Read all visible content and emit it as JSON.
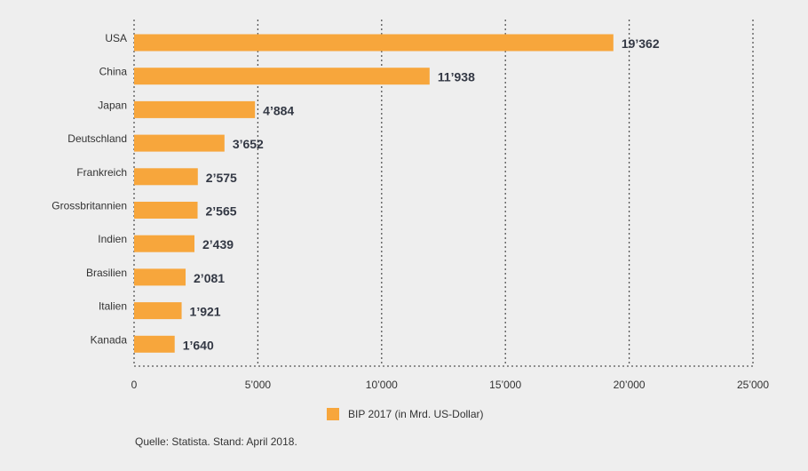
{
  "chart_data": {
    "type": "bar",
    "orientation": "horizontal",
    "categories": [
      "USA",
      "China",
      "Japan",
      "Deutschland",
      "Frankreich",
      "Grossbritannien",
      "Indien",
      "Brasilien",
      "Italien",
      "Kanada"
    ],
    "series": [
      {
        "name": "BIP 2017 (in Mrd. US-Dollar)",
        "values": [
          19362,
          11938,
          4884,
          3652,
          2575,
          2565,
          2439,
          2081,
          1921,
          1640
        ],
        "value_labels": [
          "19’362",
          "11’938",
          "4’884",
          "3’652",
          "2’575",
          "2’565",
          "2’439",
          "2’081",
          "1’921",
          "1’640"
        ]
      }
    ],
    "xlim": [
      0,
      25000
    ],
    "xticks": [
      0,
      5000,
      10000,
      15000,
      20000,
      25000
    ],
    "xtick_labels": [
      "0",
      "5’000",
      "10’000",
      "15’000",
      "20’000",
      "25’000"
    ],
    "grid": "vertical dotted",
    "legend_position": "bottom-center",
    "source": "Quelle: Statista. Stand: April 2018."
  },
  "colors": {
    "bar": "#f7a63c",
    "grid": "#555555",
    "background": "#eeeeee"
  }
}
